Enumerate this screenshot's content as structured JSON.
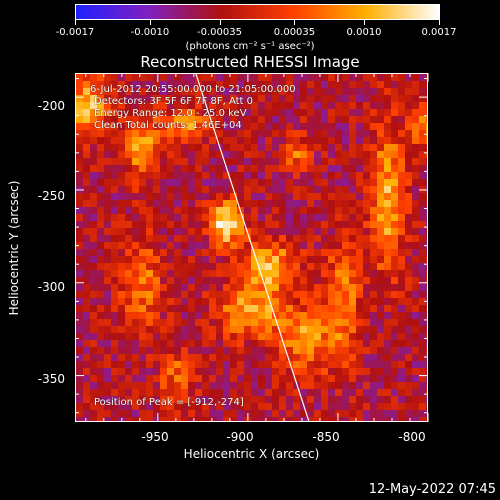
{
  "colorbar": {
    "tick_labels": [
      "-0.0017",
      "-0.0010",
      "-0.00035",
      "0.00035",
      "0.0010",
      "0.0017"
    ],
    "units": "(photons cm⁻² s⁻¹ asec⁻²)",
    "colors": [
      "#2020ff",
      "#8020c0",
      "#b01010",
      "#ff4000",
      "#ffb000",
      "#ffffff"
    ]
  },
  "plot": {
    "title": "Reconstructed RHESSI Image",
    "info_lines": [
      "6-Jul-2012 20:55:00.000 to 21:05:00.000",
      "Detectors: 3F 5F 6F 7F 8F, Att 0",
      "Energy Range: 12.0 - 25.0 keV",
      "Clean     Total counts: 1.46E+04"
    ],
    "peak_text": "Position of Peak = [-912,-274]",
    "xlabel": "Heliocentric X (arcsec)",
    "ylabel": "Heliocentric Y (arcsec)",
    "xticks": [
      "-950",
      "-900",
      "-850",
      "-800"
    ],
    "yticks": [
      "-200",
      "-250",
      "-300",
      "-350"
    ]
  },
  "chart_data": {
    "type": "heatmap",
    "title": "Reconstructed RHESSI Image",
    "xlabel": "Heliocentric X (arcsec)",
    "ylabel": "Heliocentric Y (arcsec)",
    "xlim": [
      -996,
      -800
    ],
    "ylim": [
      -375,
      -187
    ],
    "x_ticks": [
      -950,
      -900,
      -850,
      -800
    ],
    "y_ticks": [
      -200,
      -250,
      -300,
      -350
    ],
    "colorbar_range": [
      -0.0017,
      0.0017
    ],
    "colorbar_ticks": [
      -0.0017,
      -0.001,
      -0.00035,
      0.00035,
      0.001,
      0.0017
    ],
    "peak_position": [
      -912,
      -274
    ],
    "limb_line": [
      [
        -929,
        -187
      ],
      [
        -866,
        -375
      ]
    ],
    "blobs": [
      {
        "x": -914,
        "y": -267,
        "rx": 9,
        "ry": 12,
        "value": 0.0017
      },
      {
        "x": -890,
        "y": -290,
        "rx": 14,
        "ry": 14,
        "value": 0.0011
      },
      {
        "x": -900,
        "y": -315,
        "rx": 18,
        "ry": 14,
        "value": 0.001
      },
      {
        "x": -870,
        "y": -330,
        "rx": 14,
        "ry": 18,
        "value": 0.0008
      },
      {
        "x": -990,
        "y": -205,
        "rx": 12,
        "ry": 16,
        "value": 0.0012
      },
      {
        "x": -960,
        "y": -225,
        "rx": 10,
        "ry": 18,
        "value": 0.0009
      },
      {
        "x": -935,
        "y": -215,
        "rx": 12,
        "ry": 10,
        "value": 0.0008
      },
      {
        "x": -825,
        "y": -255,
        "rx": 10,
        "ry": 40,
        "value": 0.001
      },
      {
        "x": -850,
        "y": -310,
        "rx": 10,
        "ry": 30,
        "value": 0.0008
      },
      {
        "x": -960,
        "y": -300,
        "rx": 12,
        "ry": 25,
        "value": 0.0006
      },
      {
        "x": -940,
        "y": -350,
        "rx": 10,
        "ry": 14,
        "value": 0.0005
      },
      {
        "x": -805,
        "y": -215,
        "rx": 8,
        "ry": 12,
        "value": 0.0006
      },
      {
        "x": -875,
        "y": -230,
        "rx": 8,
        "ry": 10,
        "value": 0.0005
      }
    ]
  },
  "footer": {
    "timestamp": "12-May-2022 07:45"
  }
}
